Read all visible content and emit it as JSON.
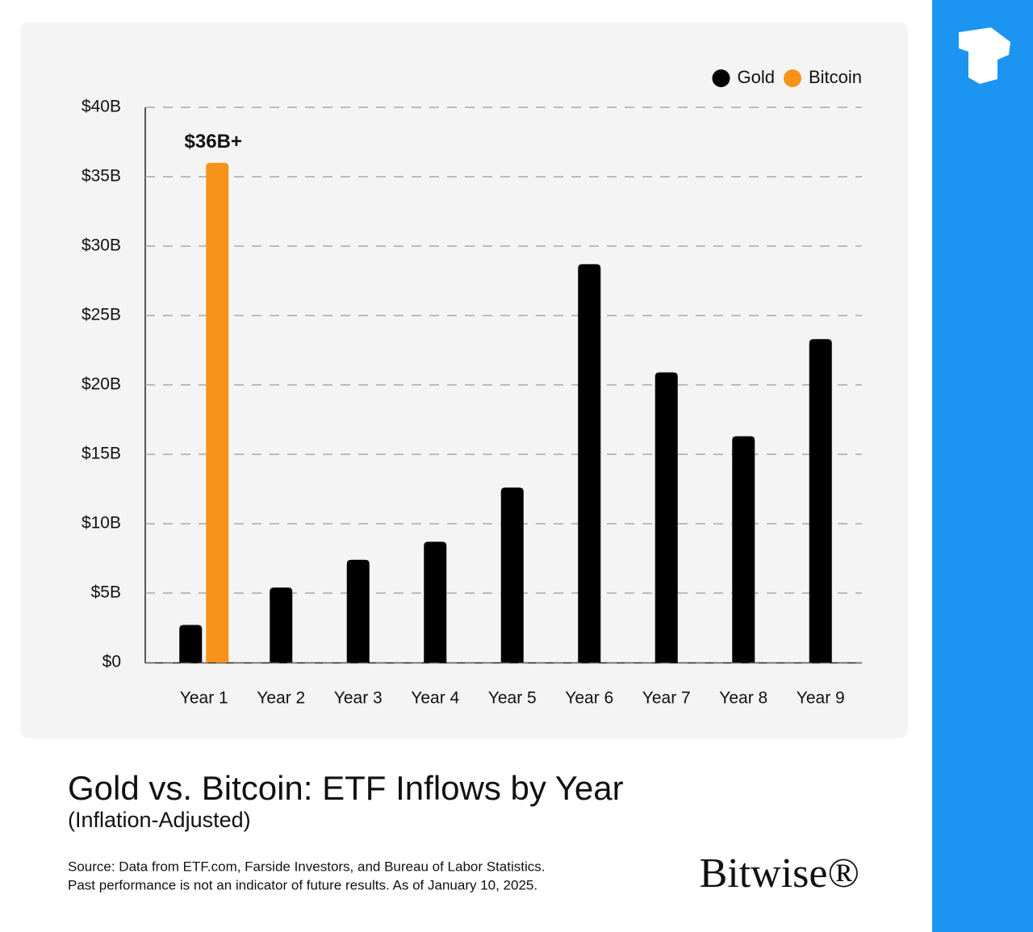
{
  "chart_data": {
    "type": "bar",
    "title": "Gold vs. Bitcoin: ETF Inflows by Year",
    "subtitle": "(Inflation-Adjusted)",
    "notes": [
      "Source: Data from ETF.com, Farside Investors, and Bureau of Labor Statistics.",
      "Past performance is not an indicator of future results. As of January 10, 2025."
    ],
    "brand": "Bitwise®",
    "categories": [
      "Year 1",
      "Year 2",
      "Year 3",
      "Year 4",
      "Year 5",
      "Year 6",
      "Year 7",
      "Year 8",
      "Year 9"
    ],
    "series": [
      {
        "name": "Gold",
        "color": "#000000",
        "values": [
          2.7,
          5.4,
          7.4,
          8.7,
          12.6,
          28.7,
          20.9,
          16.3,
          23.3
        ]
      },
      {
        "name": "Bitcoin",
        "color": "#f7931a",
        "values": [
          36,
          null,
          null,
          null,
          null,
          null,
          null,
          null,
          null
        ],
        "value_labels": [
          "$36B+",
          null,
          null,
          null,
          null,
          null,
          null,
          null,
          null
        ]
      }
    ],
    "ylim": [
      0,
      40
    ],
    "yticks": [
      {
        "value": 0,
        "label": "$0"
      },
      {
        "value": 5,
        "label": "$5B"
      },
      {
        "value": 10,
        "label": "$10B"
      },
      {
        "value": 15,
        "label": "$15B"
      },
      {
        "value": 20,
        "label": "$20B"
      },
      {
        "value": 25,
        "label": "$25B"
      },
      {
        "value": 30,
        "label": "$30B"
      },
      {
        "value": 35,
        "label": "$35B"
      },
      {
        "value": 40,
        "label": "$40B"
      }
    ],
    "grid": true,
    "legend": "top-right"
  }
}
